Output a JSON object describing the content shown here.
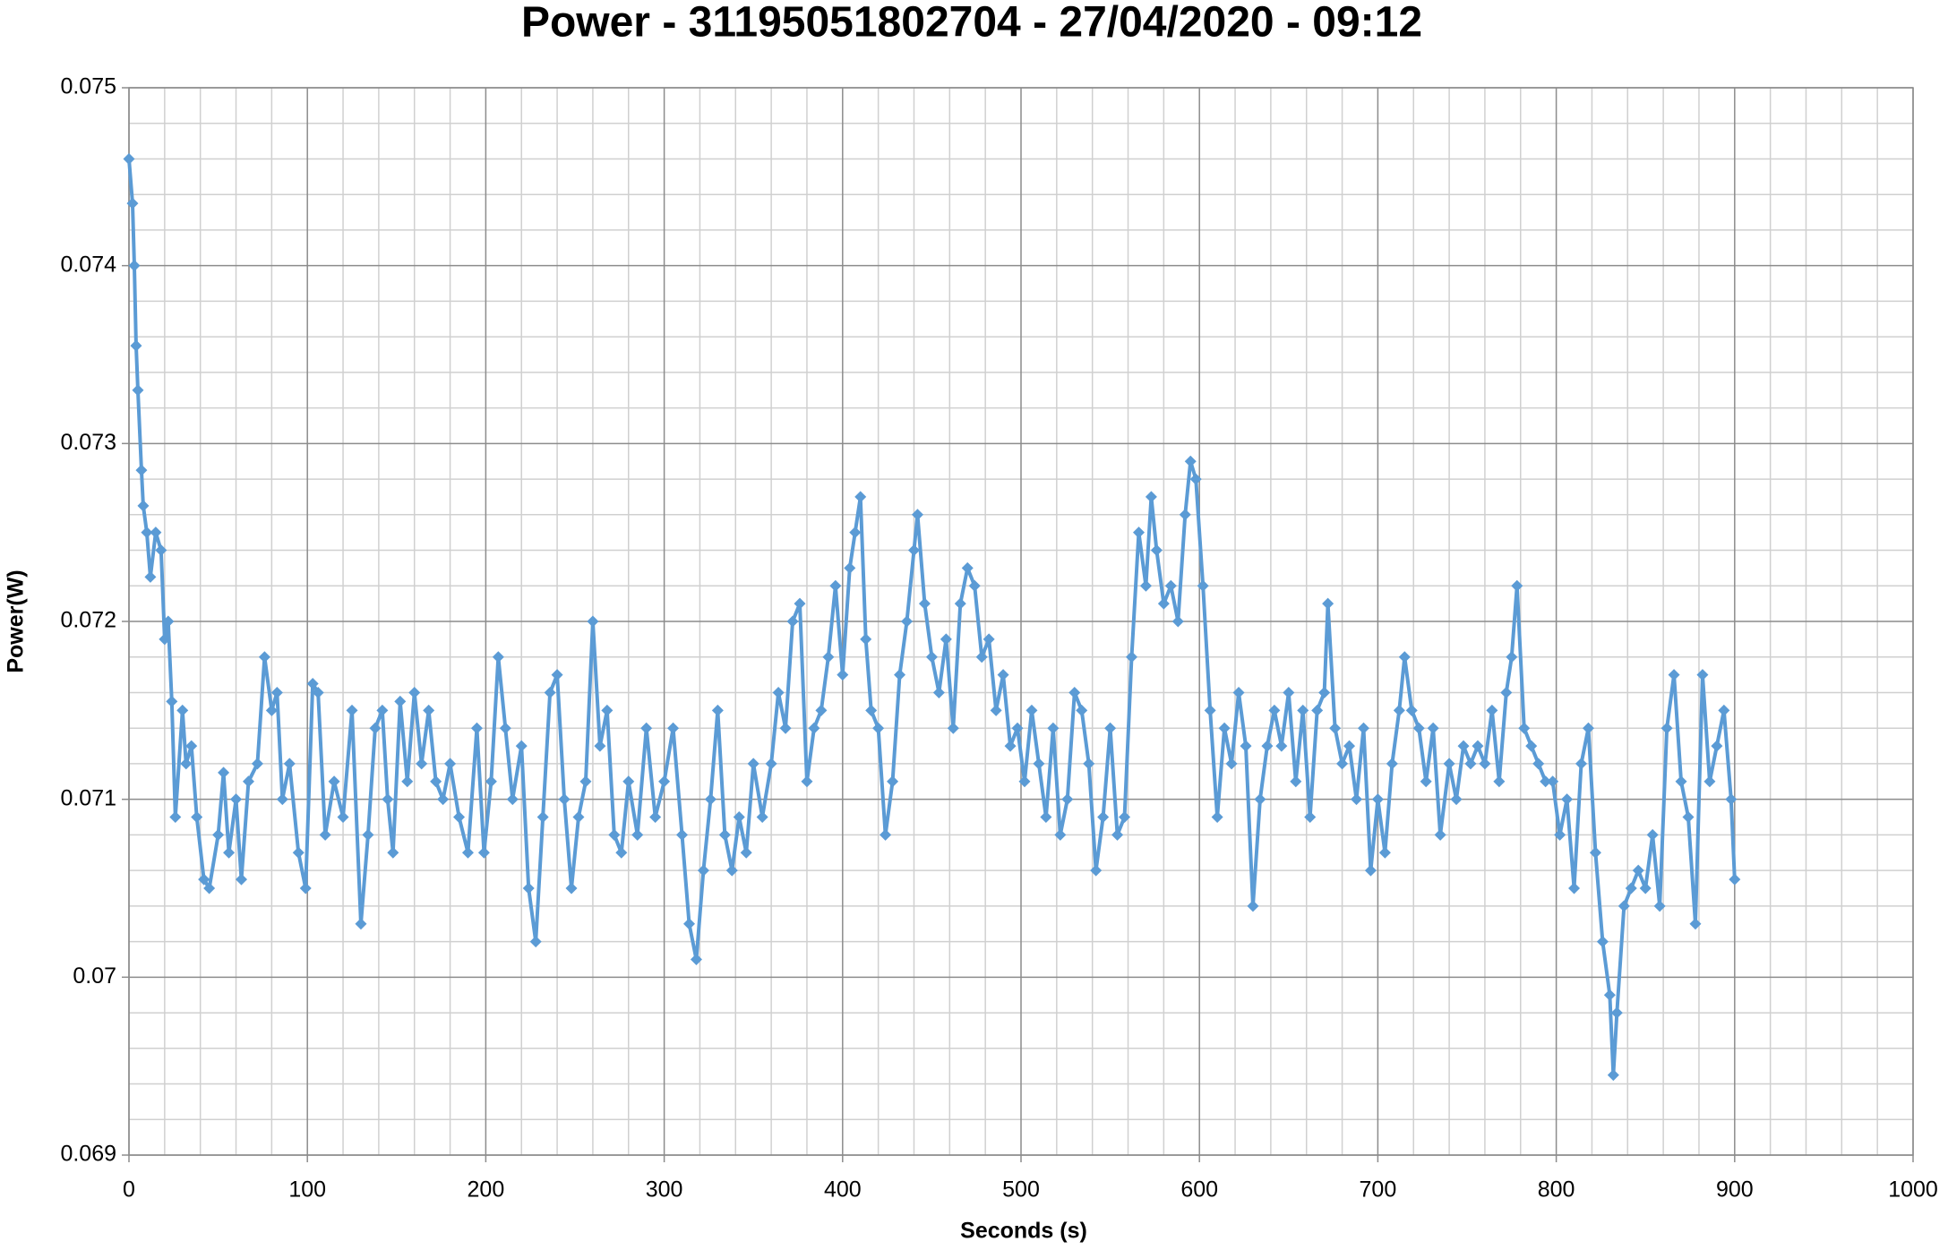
{
  "chart_data": {
    "type": "line",
    "title": "Power - 311950518027​04 - 27/04/2020 - 09:12",
    "x_label": "Seconds (s)",
    "y_label": "Power(W)",
    "x": [
      0,
      2,
      3,
      4,
      5,
      7,
      8,
      10,
      12,
      15,
      18,
      20,
      22,
      24,
      26,
      30,
      32,
      35,
      38,
      42,
      45,
      50,
      53,
      56,
      60,
      63,
      67,
      72,
      76,
      80,
      83,
      86,
      90,
      95,
      99,
      103,
      106,
      110,
      115,
      120,
      125,
      130,
      134,
      138,
      142,
      145,
      148,
      152,
      156,
      160,
      164,
      168,
      172,
      176,
      180,
      185,
      190,
      195,
      199,
      203,
      207,
      211,
      215,
      220,
      224,
      228,
      232,
      236,
      240,
      244,
      248,
      252,
      256,
      260,
      264,
      268,
      272,
      276,
      280,
      285,
      290,
      295,
      300,
      305,
      310,
      314,
      318,
      322,
      326,
      330,
      334,
      338,
      342,
      346,
      350,
      355,
      360,
      364,
      368,
      372,
      376,
      380,
      384,
      388,
      392,
      396,
      400,
      404,
      407,
      410,
      413,
      416,
      420,
      424,
      428,
      432,
      436,
      440,
      442,
      446,
      450,
      454,
      458,
      462,
      466,
      470,
      474,
      478,
      482,
      486,
      490,
      494,
      498,
      502,
      506,
      510,
      514,
      518,
      522,
      526,
      530,
      534,
      538,
      542,
      546,
      550,
      554,
      558,
      562,
      566,
      570,
      573,
      576,
      580,
      584,
      588,
      592,
      595,
      598,
      602,
      606,
      610,
      614,
      618,
      622,
      626,
      630,
      634,
      638,
      642,
      646,
      650,
      654,
      658,
      662,
      666,
      670,
      672,
      676,
      680,
      684,
      688,
      692,
      696,
      700,
      704,
      708,
      712,
      715,
      719,
      723,
      727,
      731,
      735,
      740,
      744,
      748,
      752,
      756,
      760,
      764,
      768,
      772,
      775,
      778,
      782,
      786,
      790,
      794,
      798,
      802,
      806,
      810,
      814,
      818,
      822,
      826,
      830,
      832,
      834,
      838,
      842,
      846,
      850,
      854,
      858,
      862,
      866,
      870,
      874,
      878,
      882,
      886,
      890,
      894,
      898,
      900
    ],
    "series": [
      {
        "name": "Power",
        "color": "#5b9bd5",
        "values": [
          0.0746,
          0.07435,
          0.074,
          0.07355,
          0.0733,
          0.07285,
          0.07265,
          0.0725,
          0.07225,
          0.0725,
          0.0724,
          0.0719,
          0.072,
          0.07155,
          0.0709,
          0.0715,
          0.0712,
          0.0713,
          0.0709,
          0.07055,
          0.0705,
          0.0708,
          0.07115,
          0.0707,
          0.071,
          0.07055,
          0.0711,
          0.0712,
          0.0718,
          0.0715,
          0.0716,
          0.071,
          0.0712,
          0.0707,
          0.0705,
          0.07165,
          0.0716,
          0.0708,
          0.0711,
          0.0709,
          0.0715,
          0.0703,
          0.0708,
          0.0714,
          0.0715,
          0.071,
          0.0707,
          0.07155,
          0.0711,
          0.0716,
          0.0712,
          0.0715,
          0.0711,
          0.071,
          0.0712,
          0.0709,
          0.0707,
          0.0714,
          0.0707,
          0.0711,
          0.0718,
          0.0714,
          0.071,
          0.0713,
          0.0705,
          0.0702,
          0.0709,
          0.0716,
          0.0717,
          0.071,
          0.0705,
          0.0709,
          0.0711,
          0.072,
          0.0713,
          0.0715,
          0.0708,
          0.0707,
          0.0711,
          0.0708,
          0.0714,
          0.0709,
          0.0711,
          0.0714,
          0.0708,
          0.0703,
          0.0701,
          0.0706,
          0.071,
          0.0715,
          0.0708,
          0.0706,
          0.0709,
          0.0707,
          0.0712,
          0.0709,
          0.0712,
          0.0716,
          0.0714,
          0.072,
          0.0721,
          0.0711,
          0.0714,
          0.0715,
          0.0718,
          0.0722,
          0.0717,
          0.0723,
          0.0725,
          0.0727,
          0.0719,
          0.0715,
          0.0714,
          0.0708,
          0.0711,
          0.0717,
          0.072,
          0.0724,
          0.0726,
          0.0721,
          0.0718,
          0.0716,
          0.0719,
          0.0714,
          0.0721,
          0.0723,
          0.0722,
          0.0718,
          0.0719,
          0.0715,
          0.0717,
          0.0713,
          0.0714,
          0.0711,
          0.0715,
          0.0712,
          0.0709,
          0.0714,
          0.0708,
          0.071,
          0.0716,
          0.0715,
          0.0712,
          0.0706,
          0.0709,
          0.0714,
          0.0708,
          0.0709,
          0.0718,
          0.0725,
          0.0722,
          0.0727,
          0.0724,
          0.0721,
          0.0722,
          0.072,
          0.0726,
          0.0729,
          0.0728,
          0.0722,
          0.0715,
          0.0709,
          0.0714,
          0.0712,
          0.0716,
          0.0713,
          0.0704,
          0.071,
          0.0713,
          0.0715,
          0.0713,
          0.0716,
          0.0711,
          0.0715,
          0.0709,
          0.0715,
          0.0716,
          0.0721,
          0.0714,
          0.0712,
          0.0713,
          0.071,
          0.0714,
          0.0706,
          0.071,
          0.0707,
          0.0712,
          0.0715,
          0.0718,
          0.0715,
          0.0714,
          0.0711,
          0.0714,
          0.0708,
          0.0712,
          0.071,
          0.0713,
          0.0712,
          0.0713,
          0.0712,
          0.0715,
          0.0711,
          0.0716,
          0.0718,
          0.0722,
          0.0714,
          0.0713,
          0.0712,
          0.0711,
          0.0711,
          0.0708,
          0.071,
          0.0705,
          0.0712,
          0.0714,
          0.0707,
          0.0702,
          0.0699,
          0.06945,
          0.0698,
          0.0704,
          0.0705,
          0.0706,
          0.0705,
          0.0708,
          0.0704,
          0.0714,
          0.0717,
          0.0711,
          0.0709,
          0.0703,
          0.0717,
          0.0711,
          0.0713,
          0.0715,
          0.071,
          0.07055
        ]
      }
    ],
    "xlim": [
      0,
      1000
    ],
    "xticks": [
      0,
      100,
      200,
      300,
      400,
      500,
      600,
      700,
      800,
      900,
      1000
    ],
    "ylim": [
      0.069,
      0.075
    ],
    "yticks": [
      0.069,
      0.07,
      0.071,
      0.072,
      0.073,
      0.074,
      0.075
    ],
    "grid": true,
    "markers": "diamond"
  }
}
